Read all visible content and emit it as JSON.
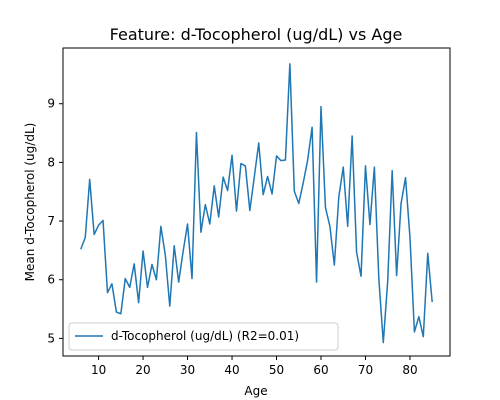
{
  "chart_data": {
    "type": "line",
    "title": "Feature: d-Tocopherol (ug/dL) vs Age",
    "xlabel": "Age",
    "ylabel": "Mean d-Tocopherol (ug/dL)",
    "xlim": [
      2,
      89
    ],
    "ylim": [
      4.7,
      9.95
    ],
    "xticks": [
      10,
      20,
      30,
      40,
      50,
      60,
      70,
      80
    ],
    "yticks": [
      5,
      6,
      7,
      8,
      9
    ],
    "grid": false,
    "legend_position": "lower-left",
    "series": [
      {
        "name": "d-Tocopherol (ug/dL) (R2=0.01)",
        "color": "#1f77b4",
        "x": [
          6,
          7,
          8,
          9,
          10,
          11,
          12,
          13,
          14,
          15,
          16,
          17,
          18,
          19,
          20,
          21,
          22,
          23,
          24,
          25,
          26,
          27,
          28,
          29,
          30,
          31,
          32,
          33,
          34,
          35,
          36,
          37,
          38,
          39,
          40,
          41,
          42,
          43,
          44,
          45,
          46,
          47,
          48,
          49,
          50,
          51,
          52,
          53,
          54,
          55,
          56,
          57,
          58,
          59,
          60,
          61,
          62,
          63,
          64,
          65,
          66,
          67,
          68,
          69,
          70,
          71,
          72,
          73,
          74,
          75,
          76,
          77,
          78,
          79,
          80,
          81,
          82,
          83,
          84,
          85
        ],
        "y": [
          6.52,
          6.72,
          7.71,
          6.77,
          6.93,
          7.01,
          5.78,
          5.93,
          5.45,
          5.42,
          6.02,
          5.87,
          6.27,
          5.61,
          6.49,
          5.87,
          6.26,
          6.0,
          6.91,
          6.42,
          5.55,
          6.58,
          5.96,
          6.48,
          6.95,
          6.02,
          8.51,
          6.81,
          7.28,
          6.95,
          7.6,
          7.07,
          7.75,
          7.52,
          8.12,
          7.17,
          7.98,
          7.94,
          7.18,
          7.75,
          8.33,
          7.45,
          7.76,
          7.46,
          8.11,
          8.03,
          8.04,
          9.68,
          7.51,
          7.3,
          7.65,
          8.04,
          8.6,
          5.96,
          8.95,
          7.23,
          6.91,
          6.25,
          7.41,
          7.92,
          6.91,
          8.45,
          6.47,
          6.06,
          7.94,
          6.94,
          7.92,
          6.02,
          4.93,
          5.98,
          7.86,
          6.07,
          7.3,
          7.74,
          6.72,
          5.11,
          5.37,
          5.03,
          6.45,
          5.62
        ]
      }
    ]
  }
}
